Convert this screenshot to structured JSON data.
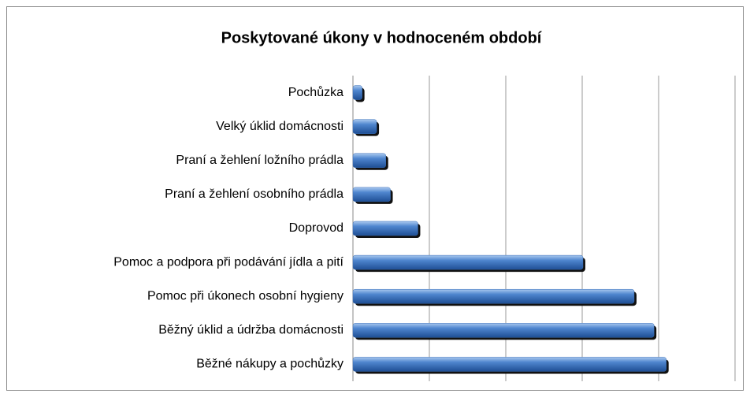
{
  "chart_data": {
    "type": "hbar",
    "title": "Poskytované úkony v hodnoceném období",
    "categories": [
      "Pochůzka",
      "Velký úklid domácnosti",
      "Praní a žehlení ložního prádla",
      "Praní a žehlení osobního prádla",
      "Doprovod",
      "Pomoc a podpora při podávání jídla a pití",
      "Pomoc při úkonech osobní hygieny",
      "Běžný úklid a údržba domácnosti",
      "Běžné nákupy a pochůzky"
    ],
    "values": [
      0.12,
      0.31,
      0.43,
      0.49,
      0.85,
      3.01,
      3.68,
      3.94,
      4.1
    ],
    "color": "#3a6fb8",
    "xlim": [
      0,
      5
    ],
    "xticks": [
      0,
      1,
      2,
      3,
      4,
      5
    ],
    "grid": true
  }
}
